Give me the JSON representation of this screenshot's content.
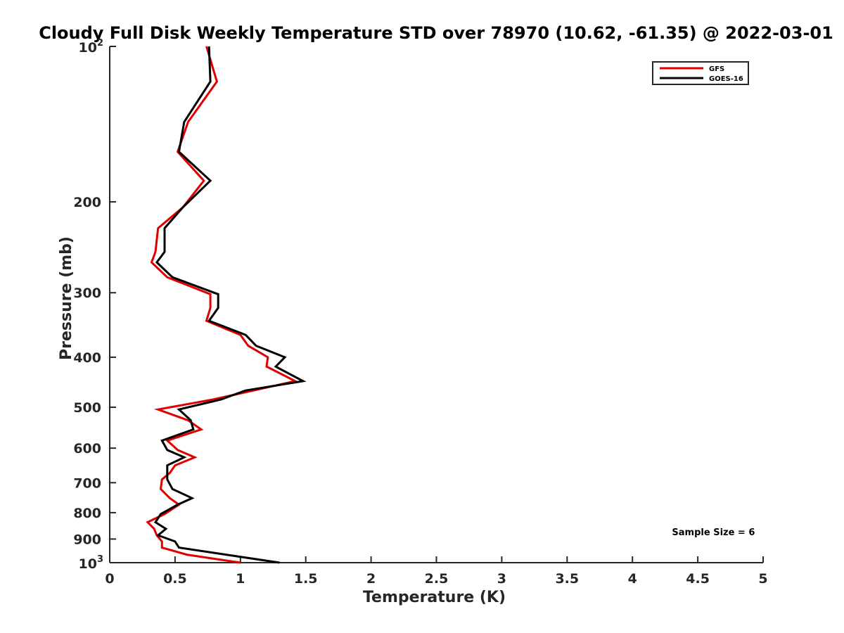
{
  "chart_data": {
    "type": "line",
    "title": "Cloudy Full Disk Weekly Temperature STD over 78970 (10.62, -61.35) @ 2022-03-01",
    "xlabel": "Temperature (K)",
    "ylabel": "Pressure (mb)",
    "xlim": [
      0,
      5
    ],
    "ylim": [
      100,
      1000
    ],
    "y_scale": "log",
    "y_reversed": true,
    "grid": false,
    "legend_position": "top-right",
    "x_ticks": [
      {
        "value": 0,
        "label": "0"
      },
      {
        "value": 0.5,
        "label": "0.5"
      },
      {
        "value": 1,
        "label": "1"
      },
      {
        "value": 1.5,
        "label": "1.5"
      },
      {
        "value": 2,
        "label": "2"
      },
      {
        "value": 2.5,
        "label": "2.5"
      },
      {
        "value": 3,
        "label": "3"
      },
      {
        "value": 3.5,
        "label": "3.5"
      },
      {
        "value": 4,
        "label": "4"
      },
      {
        "value": 4.5,
        "label": "4.5"
      },
      {
        "value": 5,
        "label": "5"
      }
    ],
    "y_ticks": [
      {
        "value": 100,
        "label": "10",
        "exp": "2"
      },
      {
        "value": 200,
        "label": "200"
      },
      {
        "value": 300,
        "label": "300"
      },
      {
        "value": 400,
        "label": "400"
      },
      {
        "value": 500,
        "label": "500"
      },
      {
        "value": 600,
        "label": "600"
      },
      {
        "value": 700,
        "label": "700"
      },
      {
        "value": 800,
        "label": "800"
      },
      {
        "value": 900,
        "label": "900"
      },
      {
        "value": 1000,
        "label": "10",
        "exp": "3"
      }
    ],
    "series": [
      {
        "name": "GFS",
        "color": "#e00000",
        "points": [
          [
            0.74,
            100
          ],
          [
            0.82,
            117
          ],
          [
            0.6,
            140
          ],
          [
            0.52,
            160
          ],
          [
            0.72,
            182
          ],
          [
            0.56,
            205
          ],
          [
            0.37,
            225
          ],
          [
            0.35,
            250
          ],
          [
            0.32,
            262
          ],
          [
            0.44,
            280
          ],
          [
            0.77,
            302
          ],
          [
            0.77,
            321
          ],
          [
            0.74,
            340
          ],
          [
            1.0,
            362
          ],
          [
            1.06,
            380
          ],
          [
            1.21,
            400
          ],
          [
            1.2,
            417
          ],
          [
            1.42,
            445
          ],
          [
            1.1,
            464
          ],
          [
            0.79,
            483
          ],
          [
            0.37,
            505
          ],
          [
            0.6,
            530
          ],
          [
            0.7,
            552
          ],
          [
            0.44,
            580
          ],
          [
            0.52,
            605
          ],
          [
            0.65,
            625
          ],
          [
            0.5,
            648
          ],
          [
            0.46,
            670
          ],
          [
            0.4,
            690
          ],
          [
            0.39,
            720
          ],
          [
            0.46,
            750
          ],
          [
            0.53,
            772
          ],
          [
            0.42,
            805
          ],
          [
            0.29,
            835
          ],
          [
            0.34,
            860
          ],
          [
            0.36,
            885
          ],
          [
            0.4,
            910
          ],
          [
            0.4,
            935
          ],
          [
            0.59,
            965
          ],
          [
            1.0,
            1000
          ]
        ]
      },
      {
        "name": "GOES-16",
        "color": "#000000",
        "points": [
          [
            0.76,
            100
          ],
          [
            0.77,
            117
          ],
          [
            0.57,
            140
          ],
          [
            0.53,
            160
          ],
          [
            0.77,
            182
          ],
          [
            0.56,
            205
          ],
          [
            0.42,
            225
          ],
          [
            0.42,
            250
          ],
          [
            0.36,
            262
          ],
          [
            0.48,
            280
          ],
          [
            0.83,
            302
          ],
          [
            0.83,
            321
          ],
          [
            0.76,
            340
          ],
          [
            1.04,
            362
          ],
          [
            1.12,
            380
          ],
          [
            1.34,
            400
          ],
          [
            1.27,
            417
          ],
          [
            1.48,
            445
          ],
          [
            1.04,
            464
          ],
          [
            0.85,
            483
          ],
          [
            0.53,
            505
          ],
          [
            0.62,
            530
          ],
          [
            0.64,
            552
          ],
          [
            0.4,
            580
          ],
          [
            0.44,
            605
          ],
          [
            0.57,
            625
          ],
          [
            0.44,
            648
          ],
          [
            0.44,
            670
          ],
          [
            0.44,
            690
          ],
          [
            0.48,
            720
          ],
          [
            0.63,
            750
          ],
          [
            0.52,
            772
          ],
          [
            0.39,
            805
          ],
          [
            0.35,
            835
          ],
          [
            0.43,
            860
          ],
          [
            0.37,
            885
          ],
          [
            0.5,
            910
          ],
          [
            0.53,
            935
          ],
          [
            0.89,
            965
          ],
          [
            1.3,
            1000
          ]
        ]
      }
    ],
    "annotations": [
      {
        "text": "Sample Size = 6",
        "x": 4.9,
        "y": 910
      }
    ]
  }
}
